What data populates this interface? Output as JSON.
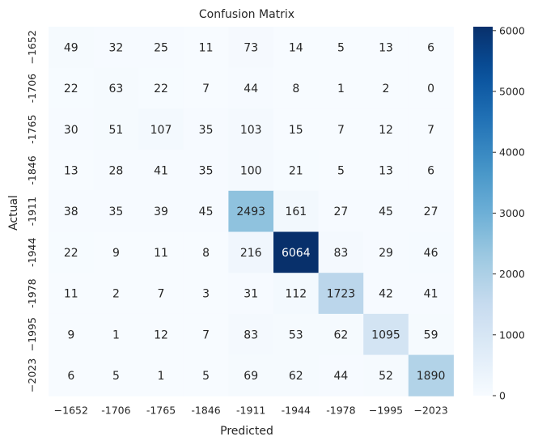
{
  "chart_data": {
    "type": "heatmap",
    "title": "Confusion Matrix",
    "xlabel": "Predicted",
    "ylabel": "Actual",
    "x_categories": [
      "−1652",
      "-1706",
      "-1765",
      "-1846",
      "-1911",
      "-1944",
      "-1978",
      "−1995",
      "−2023"
    ],
    "y_categories": [
      "−1652",
      "-1706",
      "-1765",
      "-1846",
      "-1911",
      "-1944",
      "-1978",
      "−1995",
      "−2023"
    ],
    "values": [
      [
        49,
        32,
        25,
        11,
        73,
        14,
        5,
        13,
        6
      ],
      [
        22,
        63,
        22,
        7,
        44,
        8,
        1,
        2,
        0
      ],
      [
        30,
        51,
        107,
        35,
        103,
        15,
        7,
        12,
        7
      ],
      [
        13,
        28,
        41,
        35,
        100,
        21,
        5,
        13,
        6
      ],
      [
        38,
        35,
        39,
        45,
        2493,
        161,
        27,
        45,
        27
      ],
      [
        22,
        9,
        11,
        8,
        216,
        6064,
        83,
        29,
        46
      ],
      [
        11,
        2,
        7,
        3,
        31,
        112,
        1723,
        42,
        41
      ],
      [
        9,
        1,
        12,
        7,
        83,
        53,
        62,
        1095,
        59
      ],
      [
        6,
        5,
        1,
        5,
        69,
        62,
        44,
        52,
        1890
      ]
    ],
    "colormap": "Blues",
    "vmin": 0,
    "vmax": 6064,
    "colorbar_ticks": [
      0,
      1000,
      2000,
      3000,
      4000,
      5000,
      6000
    ],
    "colorbar_tick_labels": [
      "0",
      "1000",
      "2000",
      "3000",
      "4000",
      "5000",
      "6000"
    ],
    "colorbar_placement": "right",
    "grid": false
  }
}
